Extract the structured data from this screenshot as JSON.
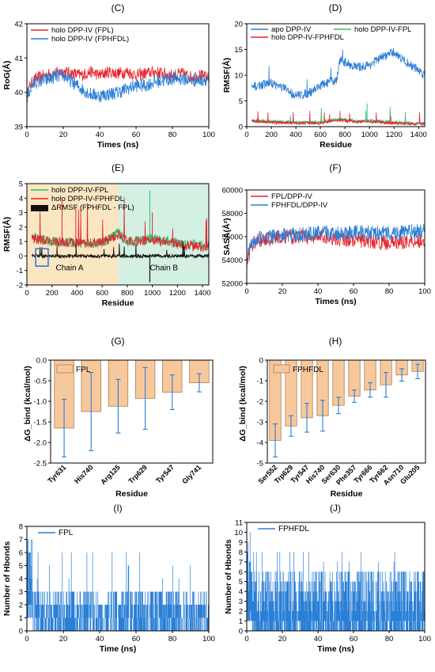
{
  "colors": {
    "red": "#e8222a",
    "blue": "#2a7fd6",
    "green": "#2bbf6e",
    "black": "#111111",
    "bar_fill": "#f7c89c",
    "bar_edge": "#b07e52",
    "chainA_bg": "#fbe6c2",
    "chainB_bg": "#d3f0e3",
    "box": "#2a6fe0"
  },
  "chart_data": [
    {
      "id": "C",
      "type": "line",
      "panel_label": "(C)",
      "xlabel": "Times (ns)",
      "ylabel": "RoG(Å)",
      "xlim": [
        0,
        100
      ],
      "ylim": [
        39,
        42
      ],
      "xticks": [
        "0",
        "20",
        "40",
        "60",
        "80",
        "100"
      ],
      "yticks": [
        "39",
        "40",
        "41",
        "42"
      ],
      "legend_position": "top-left",
      "series": [
        {
          "name": "holo DPP-IV (FPL)",
          "color": "#e8222a",
          "x": [
            0,
            1,
            3,
            5,
            10,
            15,
            20,
            25,
            30,
            35,
            40,
            45,
            50,
            55,
            60,
            65,
            70,
            75,
            80,
            85,
            90,
            95,
            100
          ],
          "y": [
            39.9,
            40.1,
            40.3,
            40.4,
            40.5,
            40.55,
            40.6,
            40.55,
            40.5,
            40.6,
            40.5,
            40.6,
            40.55,
            40.6,
            40.5,
            40.55,
            40.6,
            40.55,
            40.5,
            40.55,
            40.45,
            40.5,
            40.4
          ],
          "noise": 0.18
        },
        {
          "name": "holo DPP-IV (FPHFDL)",
          "color": "#2a7fd6",
          "x": [
            0,
            1,
            3,
            5,
            10,
            15,
            20,
            25,
            30,
            35,
            40,
            45,
            50,
            55,
            60,
            65,
            70,
            75,
            80,
            85,
            90,
            95,
            100
          ],
          "y": [
            39.8,
            40.0,
            40.2,
            40.3,
            40.35,
            40.45,
            40.5,
            40.3,
            40.1,
            39.95,
            39.9,
            39.95,
            40.0,
            40.1,
            40.2,
            40.2,
            40.3,
            40.35,
            40.4,
            40.4,
            40.35,
            40.35,
            40.4
          ],
          "noise": 0.2
        }
      ]
    },
    {
      "id": "D",
      "type": "line",
      "panel_label": "(D)",
      "xlabel": "Residue",
      "ylabel": "RMSF(Å)",
      "xlim": [
        0,
        1450
      ],
      "ylim": [
        0,
        20
      ],
      "xticks": [
        "0",
        "200",
        "400",
        "600",
        "800",
        "1000",
        "1200",
        "1400"
      ],
      "yticks": [
        "0",
        "5",
        "10",
        "15",
        "20"
      ],
      "legend_position": "top",
      "series": [
        {
          "name": "apo DPP-IV",
          "color": "#2a7fd6",
          "x": [
            40,
            100,
            200,
            300,
            400,
            500,
            600,
            700,
            730,
            760,
            800,
            900,
            1000,
            1100,
            1200,
            1300,
            1400,
            1450
          ],
          "y": [
            7.5,
            8.0,
            8.5,
            7.5,
            6.0,
            6.5,
            8.0,
            8.8,
            9.0,
            13.0,
            12.5,
            11.5,
            12.0,
            13.5,
            14.5,
            12.5,
            11.0,
            10.0
          ],
          "noise": 0.9
        },
        {
          "name": "holo DPP-IV-FPL",
          "color": "#2bbf6e",
          "x": [
            40,
            200,
            400,
            600,
            750,
            900,
            1000,
            1200,
            1450
          ],
          "y": [
            1.3,
            1.0,
            0.8,
            0.8,
            1.5,
            1.0,
            1.2,
            0.8,
            0.6
          ],
          "noise": 0.35
        },
        {
          "name": "holo DPP-IV-FPHFDL",
          "color": "#e8222a",
          "x": [
            40,
            200,
            400,
            600,
            750,
            900,
            1000,
            1200,
            1450
          ],
          "y": [
            1.0,
            0.8,
            0.7,
            0.7,
            1.3,
            0.9,
            1.0,
            0.7,
            0.5
          ],
          "noise": 0.3
        }
      ]
    },
    {
      "id": "E",
      "type": "line",
      "panel_label": "(E)",
      "xlabel": "Residue",
      "ylabel": "RMSF(Å)",
      "xlim": [
        0,
        1450
      ],
      "ylim": [
        -2,
        5
      ],
      "xticks": [
        "0",
        "200",
        "400",
        "600",
        "800",
        "1000",
        "1200",
        "1400"
      ],
      "yticks": [
        "-2",
        "-1",
        "0",
        "1",
        "2",
        "3",
        "4",
        "5"
      ],
      "legend_position": "top-left",
      "chain_boundary": 730,
      "annotations": [
        "Chain A",
        "Chain B"
      ],
      "series": [
        {
          "name": "holo DPP-IV-FPL",
          "color": "#2bbf6e",
          "x": [
            40,
            200,
            400,
            600,
            730,
            800,
            1000,
            1200,
            1450
          ],
          "y": [
            1.3,
            1.0,
            0.9,
            0.9,
            1.6,
            1.0,
            1.2,
            0.9,
            0.7
          ],
          "noise": 0.35
        },
        {
          "name": "holo DPP-IV-FPHFDL",
          "color": "#e8222a",
          "x": [
            40,
            200,
            400,
            600,
            730,
            800,
            1000,
            1200,
            1450
          ],
          "y": [
            1.2,
            1.0,
            0.9,
            0.9,
            1.5,
            1.0,
            1.1,
            0.8,
            0.6
          ],
          "noise": 0.35
        },
        {
          "name": "ΔRMSF (FPHFDL - FPL)",
          "color": "#111111",
          "x": [
            40,
            1450
          ],
          "y": [
            0,
            0
          ],
          "noise": 0.12
        }
      ]
    },
    {
      "id": "F",
      "type": "line",
      "panel_label": "(F)",
      "xlabel": "Times (ns)",
      "ylabel": "SASA(Å²)",
      "xlim": [
        0,
        100
      ],
      "ylim": [
        52000,
        60000
      ],
      "xticks": [
        "0",
        "20",
        "40",
        "60",
        "80",
        "100"
      ],
      "yticks": [
        "52000",
        "54000",
        "56000",
        "58000",
        "60000"
      ],
      "legend_position": "top-left",
      "series": [
        {
          "name": "FPL/DPP-IV",
          "color": "#e8222a",
          "x": [
            0,
            2,
            5,
            10,
            20,
            30,
            40,
            50,
            60,
            70,
            80,
            90,
            100
          ],
          "y": [
            53500,
            55000,
            55600,
            55800,
            56000,
            56000,
            56000,
            55900,
            55700,
            55600,
            55500,
            55600,
            55700
          ],
          "noise": 650
        },
        {
          "name": "FPHFDL/DPP-IV",
          "color": "#2a7fd6",
          "x": [
            0,
            2,
            5,
            10,
            20,
            30,
            40,
            50,
            60,
            70,
            80,
            90,
            100
          ],
          "y": [
            53800,
            55200,
            55800,
            55900,
            56100,
            56200,
            56300,
            56300,
            56400,
            56300,
            56300,
            56400,
            56500
          ],
          "noise": 650
        }
      ]
    },
    {
      "id": "G",
      "type": "bar",
      "panel_label": "(G)",
      "xlabel": "Residue",
      "ylabel": "ΔG_bind (kcal/mol)",
      "ylim": [
        -2.5,
        0
      ],
      "yticks": [
        "-2.5",
        "-2.0",
        "-1.5",
        "-1.0",
        "-0.5",
        "0.0"
      ],
      "legend": "FPL",
      "categories": [
        "Tyr631",
        "His740",
        "Arg125",
        "Trp629",
        "Tyr547",
        "Gly741"
      ],
      "values": [
        -1.65,
        -1.25,
        -1.12,
        -0.93,
        -0.78,
        -0.55
      ],
      "errors": [
        0.7,
        0.95,
        0.65,
        0.75,
        0.42,
        0.22
      ]
    },
    {
      "id": "H",
      "type": "bar",
      "panel_label": "(H)",
      "xlabel": "Residue",
      "ylabel": "ΔG_bind (kcal/mol)",
      "ylim": [
        -5,
        0
      ],
      "yticks": [
        "-5",
        "-4",
        "-3",
        "-2",
        "-1",
        "0"
      ],
      "legend": "FPHFDL",
      "categories": [
        "Ser552",
        "Trp629",
        "Tyr547",
        "His740",
        "Ser630",
        "Phe357",
        "Tyr666",
        "Tyr662",
        "Asn710",
        "Glu205"
      ],
      "values": [
        -3.9,
        -3.2,
        -2.8,
        -2.7,
        -2.2,
        -1.75,
        -1.45,
        -1.2,
        -0.72,
        -0.55
      ],
      "errors": [
        0.8,
        0.5,
        0.7,
        0.75,
        0.4,
        0.3,
        0.35,
        0.6,
        0.3,
        0.35
      ]
    },
    {
      "id": "I",
      "type": "bar",
      "panel_label": "(I)",
      "xlabel": "Time (ns)",
      "ylabel": "Number of Hbonds",
      "xlim": [
        0,
        100
      ],
      "ylim": [
        0,
        8
      ],
      "xticks": [
        "0",
        "20",
        "40",
        "60",
        "80",
        "100"
      ],
      "yticks": [
        "0",
        "1",
        "2",
        "3",
        "4",
        "5",
        "6",
        "7",
        "8"
      ],
      "legend": "FPL",
      "color": "#2a7fd6",
      "segments": [
        {
          "x0": 0,
          "x1": 3,
          "low": 1,
          "high": 7
        },
        {
          "x0": 3,
          "x1": 40,
          "low": 0,
          "high": 3
        },
        {
          "x0": 40,
          "x1": 44,
          "low": 0,
          "high": 2
        },
        {
          "x0": 44,
          "x1": 100,
          "low": 0,
          "high": 3
        }
      ],
      "spikes_max": 6
    },
    {
      "id": "J",
      "type": "bar",
      "panel_label": "(J)",
      "xlabel": "Time (ns)",
      "ylabel": "Number of Hbonds",
      "xlim": [
        0,
        100
      ],
      "ylim": [
        0,
        11
      ],
      "xticks": [
        "0",
        "20",
        "40",
        "60",
        "80",
        "100"
      ],
      "yticks": [
        "0",
        "1",
        "2",
        "3",
        "4",
        "5",
        "6",
        "7",
        "8",
        "9",
        "10",
        "11"
      ],
      "legend": "FPHFDL",
      "color": "#2a7fd6",
      "segments": [
        {
          "x0": 0,
          "x1": 3,
          "low": 1,
          "high": 10
        },
        {
          "x0": 3,
          "x1": 100,
          "low": 0,
          "high": 6
        }
      ],
      "spikes_max": 8
    }
  ]
}
